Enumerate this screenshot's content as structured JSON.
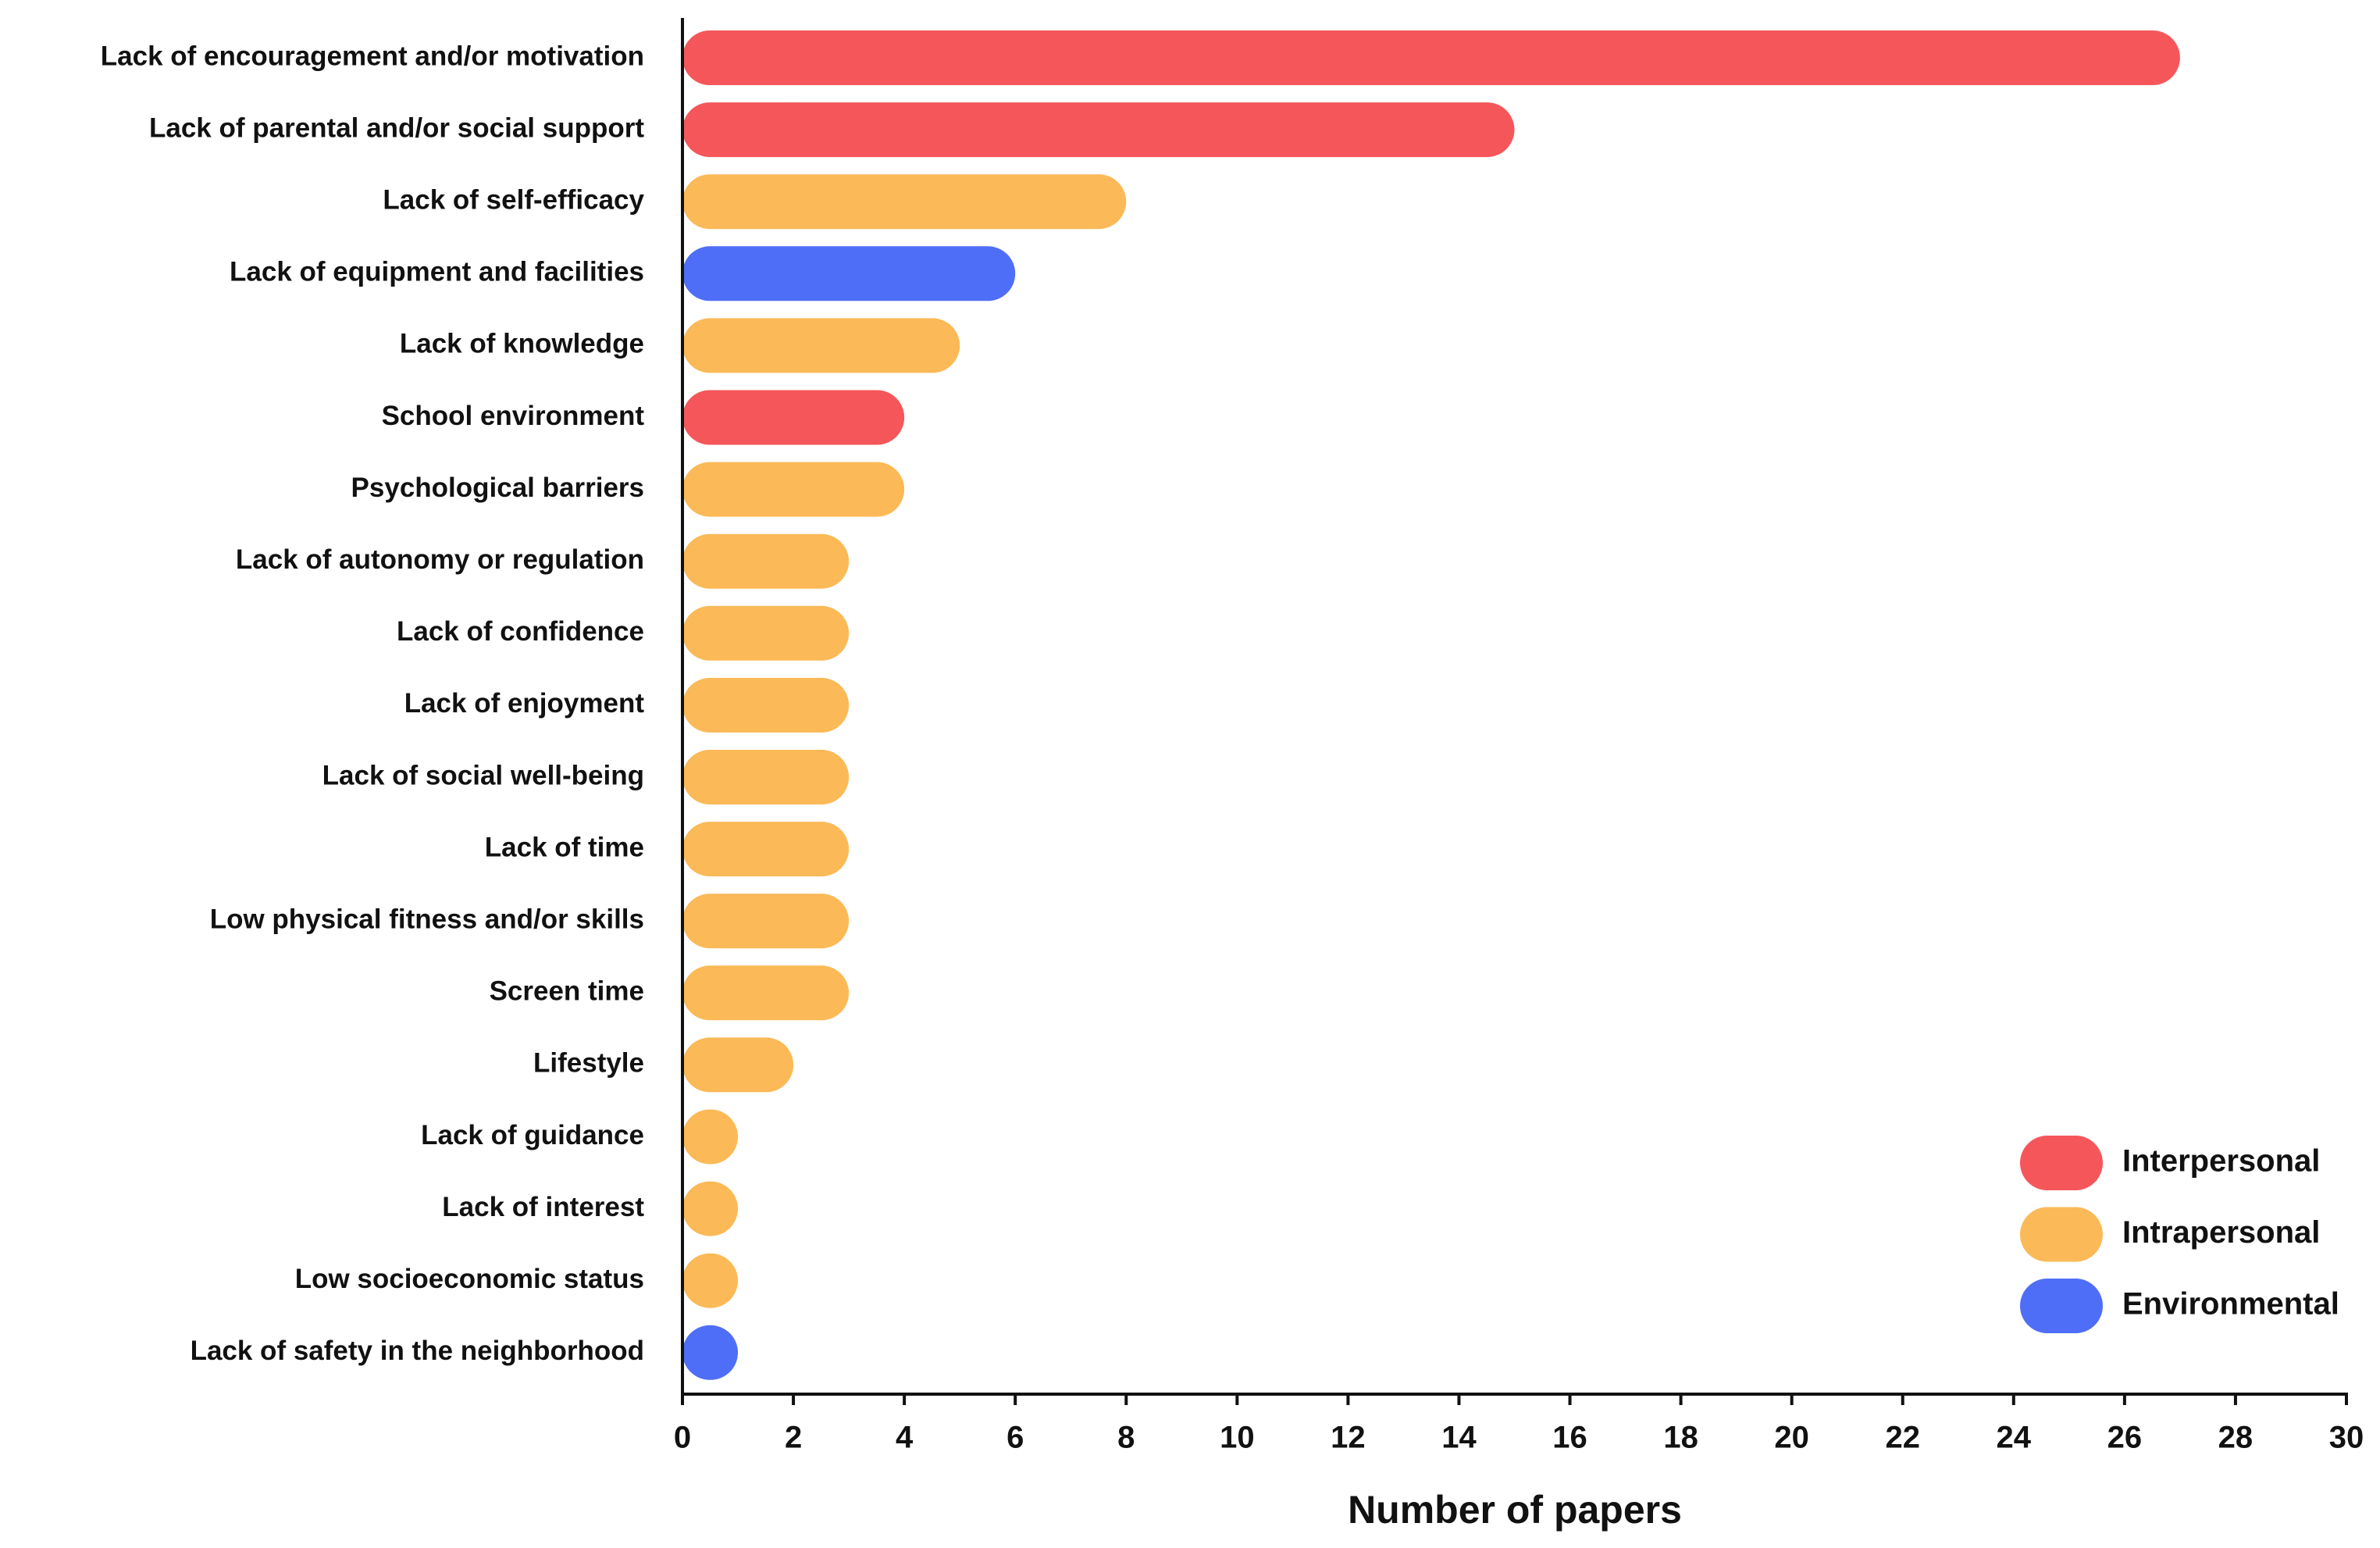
{
  "chart_data": {
    "type": "barh",
    "x_label": "Number of papers",
    "categories": [
      "Lack of encouragement and/or motivation",
      "Lack of parental and/or social support",
      "Lack of self-efficacy",
      "Lack of equipment and facilities",
      "Lack of knowledge",
      "School environment",
      "Psychological barriers",
      "Lack of autonomy or regulation",
      "Lack of confidence",
      "Lack of enjoyment",
      "Lack of social well-being",
      "Lack of time",
      "Low physical fitness and/or skills",
      "Screen time",
      "Lifestyle",
      "Lack of guidance",
      "Lack of interest",
      "Low socioeconomic status",
      "Lack of safety in the neighborhood"
    ],
    "series": [
      {
        "name": "Interpersonal",
        "color": "#f5565a",
        "values": [
          27,
          15,
          null,
          null,
          null,
          4,
          null,
          null,
          null,
          null,
          null,
          null,
          null,
          null,
          null,
          null,
          null,
          null,
          null
        ]
      },
      {
        "name": "Intrapersonal",
        "color": "#fbb957",
        "values": [
          null,
          null,
          8,
          null,
          5,
          null,
          4,
          3,
          3,
          3,
          3,
          3,
          3,
          3,
          2,
          1,
          1,
          1,
          null
        ]
      },
      {
        "name": "Environmental",
        "color": "#4f6ef7",
        "values": [
          null,
          null,
          null,
          6,
          null,
          null,
          null,
          null,
          null,
          null,
          null,
          null,
          null,
          null,
          null,
          null,
          null,
          null,
          1
        ]
      }
    ],
    "xlim": [
      0,
      30
    ],
    "xticks": [
      0,
      2,
      4,
      6,
      8,
      10,
      12,
      14,
      16,
      18,
      20,
      22,
      24,
      26,
      28,
      30
    ],
    "legend": "lower right"
  }
}
